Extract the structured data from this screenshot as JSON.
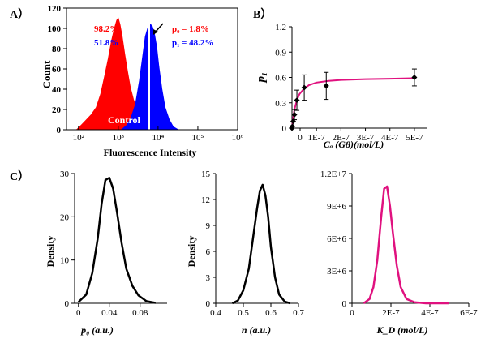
{
  "panel_labels": {
    "a": "A）",
    "b": "B）",
    "c": "C）"
  },
  "colors": {
    "red": "#ff0000",
    "blue": "#0000ff",
    "magenta": "#e0117f",
    "black": "#000000"
  },
  "chart_data": [
    {
      "id": "A",
      "type": "area",
      "title": "",
      "xlabel": "Fluorescence Intensity",
      "ylabel": "Count",
      "x_scale": "log",
      "xlim": [
        50,
        1000000
      ],
      "ylim": [
        0,
        120
      ],
      "x_ticks": [
        "10²",
        "10³",
        "10⁴",
        "10⁵",
        "10⁶"
      ],
      "x_tick_values": [
        100,
        1000,
        10000,
        100000,
        1000000
      ],
      "y_ticks": [
        0,
        20,
        40,
        60,
        80,
        100,
        120
      ],
      "series": [
        {
          "name": "Control",
          "color": "#ff0000",
          "x": [
            90,
            120,
            160,
            210,
            280,
            360,
            450,
            560,
            680,
            800,
            920,
            1000,
            1100,
            1250,
            1450,
            1700,
            2000,
            2400,
            2900,
            3500,
            4200,
            5000,
            5800
          ],
          "y": [
            0,
            5,
            10,
            15,
            22,
            35,
            52,
            70,
            88,
            100,
            108,
            110,
            104,
            92,
            75,
            58,
            42,
            30,
            20,
            12,
            6,
            2,
            0
          ]
        },
        {
          "name": "",
          "color": "#0000ff",
          "x": [
            1200,
            1600,
            2100,
            2700,
            3400,
            4100,
            4800,
            5500,
            6200,
            7000,
            8000,
            9200,
            10500,
            12500,
            15000,
            19000,
            24000,
            32000
          ],
          "y": [
            0,
            4,
            12,
            25,
            48,
            72,
            92,
            100,
            104,
            103,
            96,
            82,
            62,
            40,
            22,
            10,
            3,
            0
          ]
        }
      ],
      "gate_x": 6000,
      "annotations": {
        "left_red": "98.2%",
        "left_blue": "51.8%",
        "p0_text": "p₀ = 1.8%",
        "p1_text": "p₁ = 48.2%",
        "control": "Control"
      }
    },
    {
      "id": "B",
      "type": "scatter",
      "title": "",
      "xlabel": "Cₐ (G8)(mol/L)",
      "ylabel": "p₁",
      "xlim": [
        0,
        5.5e-07
      ],
      "ylim": [
        0,
        1.2
      ],
      "x_ticks": [
        "0",
        "1E-7",
        "2E-7",
        "3E-7",
        "4E-7",
        "5E-7"
      ],
      "x_tick_values": [
        0,
        1e-07,
        2e-07,
        3e-07,
        4e-07,
        5e-07
      ],
      "y_ticks": [
        "0",
        "0.3",
        "0.6",
        "0.9",
        "1.2"
      ],
      "y_tick_values": [
        0,
        0.3,
        0.6,
        0.9,
        1.2
      ],
      "points": {
        "x": [
          0,
          2e-09,
          5e-09,
          1e-08,
          2e-08,
          5e-08,
          1.4e-07,
          5e-07
        ],
        "y": [
          0,
          0.02,
          0.08,
          0.16,
          0.33,
          0.48,
          0.5,
          0.6
        ],
        "err": [
          0,
          0,
          0,
          0.06,
          0.12,
          0.15,
          0.16,
          0.1
        ]
      },
      "fit": {
        "color": "#e0117f",
        "x": [
          0,
          5e-09,
          1e-08,
          2e-08,
          3e-08,
          5e-08,
          7e-08,
          1e-07,
          1.5e-07,
          2e-07,
          3e-07,
          4e-07,
          5e-07
        ],
        "y": [
          0,
          0.12,
          0.22,
          0.33,
          0.4,
          0.47,
          0.51,
          0.54,
          0.56,
          0.57,
          0.58,
          0.585,
          0.59
        ]
      }
    },
    {
      "id": "C1",
      "type": "line",
      "title": "",
      "xlabel": "p₀ (a.u.)",
      "ylabel": "Density",
      "xlim": [
        -0.005,
        0.115
      ],
      "ylim": [
        0,
        30
      ],
      "x_ticks": [
        "0",
        "0.04",
        "0.08"
      ],
      "x_tick_values": [
        0,
        0.04,
        0.08
      ],
      "y_ticks": [
        "0",
        "10",
        "20",
        "30"
      ],
      "y_tick_values": [
        0,
        10,
        20,
        30
      ],
      "series": [
        {
          "color": "#000000",
          "x": [
            0.0,
            0.01,
            0.018,
            0.025,
            0.03,
            0.035,
            0.04,
            0.045,
            0.05,
            0.056,
            0.062,
            0.07,
            0.078,
            0.088,
            0.1
          ],
          "y": [
            0.3,
            2,
            7,
            15,
            23,
            28.5,
            29,
            26.5,
            21,
            14,
            8,
            4,
            1.8,
            0.5,
            0.1
          ]
        }
      ]
    },
    {
      "id": "C2",
      "type": "line",
      "title": "",
      "xlabel": "n (a.u.)",
      "ylabel": "Density",
      "xlim": [
        0.4,
        0.7
      ],
      "ylim": [
        0,
        15
      ],
      "x_ticks": [
        "0.4",
        "0.5",
        "0.6",
        "0.7"
      ],
      "x_tick_values": [
        0.4,
        0.5,
        0.6,
        0.7
      ],
      "y_ticks": [
        "0",
        "3",
        "6",
        "9",
        "12",
        "15"
      ],
      "y_tick_values": [
        0,
        3,
        6,
        9,
        12,
        15
      ],
      "series": [
        {
          "color": "#000000",
          "x": [
            0.46,
            0.48,
            0.5,
            0.52,
            0.535,
            0.55,
            0.56,
            0.57,
            0.58,
            0.59,
            0.6,
            0.615,
            0.63,
            0.65,
            0.67
          ],
          "y": [
            0,
            0.3,
            1.5,
            4,
            7.5,
            11,
            13,
            13.7,
            12.5,
            10,
            6.5,
            3,
            1,
            0.2,
            0
          ]
        }
      ]
    },
    {
      "id": "C3",
      "type": "line",
      "title": "",
      "xlabel": "K_D (mol/L)",
      "ylabel": "",
      "xlim": [
        0,
        6e-07
      ],
      "ylim": [
        0,
        12000000.0
      ],
      "x_ticks": [
        "0",
        "2E-7",
        "4E-7",
        "6E-7"
      ],
      "x_tick_values": [
        0,
        2e-07,
        4e-07,
        6e-07
      ],
      "y_ticks": [
        "0",
        "3E+6",
        "6E+6",
        "9E+6",
        "1.2E+7"
      ],
      "y_tick_values": [
        0,
        3000000.0,
        6000000.0,
        9000000.0,
        12000000.0
      ],
      "series": [
        {
          "color": "#e0117f",
          "x": [
            6e-08,
            9e-08,
            1.1e-07,
            1.3e-07,
            1.5e-07,
            1.65e-07,
            1.8e-07,
            1.95e-07,
            2.1e-07,
            2.3e-07,
            2.5e-07,
            2.8e-07,
            3.2e-07,
            3.8e-07,
            4.5e-07,
            5e-07
          ],
          "y": [
            0,
            400000.0,
            1500000.0,
            4000000.0,
            8000000.0,
            10600000.0,
            10800000.0,
            9000000.0,
            6500000.0,
            3500000.0,
            1500000.0,
            400000.0,
            100000.0,
            0,
            0,
            0
          ]
        }
      ]
    }
  ]
}
